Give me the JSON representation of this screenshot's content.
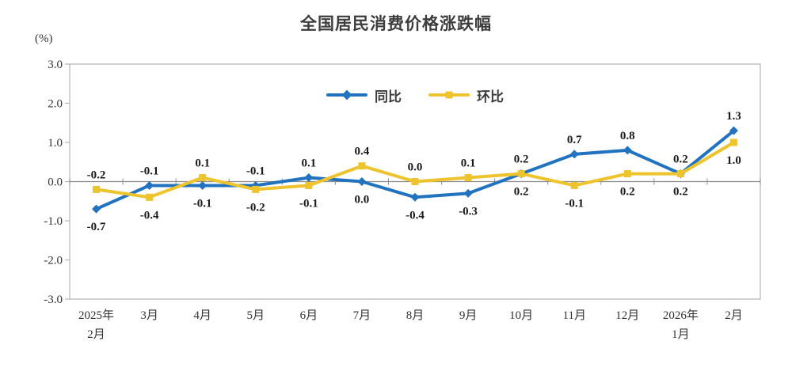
{
  "chart_data": {
    "type": "line",
    "title": "全国居民消费价格涨跌幅",
    "ylabel": "(%)",
    "xlabel": "",
    "ylim": [
      -3.0,
      3.0
    ],
    "ytick_step": 1.0,
    "ytick_labels": [
      "3.0",
      "2.0",
      "1.0",
      "0.0",
      "-1.0",
      "-2.0",
      "-3.0"
    ],
    "grid": false,
    "legend_position": "top-center",
    "categories": [
      [
        "2025年",
        "2月"
      ],
      [
        "3月"
      ],
      [
        "4月"
      ],
      [
        "5月"
      ],
      [
        "6月"
      ],
      [
        "7月"
      ],
      [
        "8月"
      ],
      [
        "9月"
      ],
      [
        "10月"
      ],
      [
        "11月"
      ],
      [
        "12月"
      ],
      [
        "2026年",
        "1月"
      ],
      [
        "2月"
      ]
    ],
    "series": [
      {
        "name": "同比",
        "color": "#2172bf",
        "marker": "diamond",
        "values": [
          -0.7,
          -0.1,
          -0.1,
          -0.1,
          0.1,
          0.0,
          -0.4,
          -0.3,
          0.2,
          0.7,
          0.8,
          0.2,
          1.3
        ],
        "labels": [
          "-0.7",
          "-0.1",
          "-0.1",
          "-0.1",
          "0.1",
          "0.0",
          "-0.4",
          "-0.3",
          "0.2",
          "0.7",
          "0.8",
          "0.2",
          "1.3"
        ]
      },
      {
        "name": "环比",
        "color": "#edc32e",
        "marker": "square",
        "values": [
          -0.2,
          -0.4,
          0.1,
          -0.2,
          -0.1,
          0.4,
          0.0,
          0.1,
          0.2,
          -0.1,
          0.2,
          0.2,
          1.0
        ],
        "labels": [
          "-0.2",
          "-0.4",
          "0.1",
          "-0.2",
          "-0.1",
          "0.4",
          "0.0",
          "0.1",
          "0.2",
          "-0.1",
          "0.2",
          "0.2",
          "1.0"
        ]
      }
    ]
  },
  "colors": {
    "axis_frame": "#b3b3b3",
    "zero_line": "#8c8c8c",
    "tick_text": "#333333",
    "data_label_text": "#1a1a1a",
    "title_text": "#3d3d3d",
    "background": "#ffffff"
  }
}
